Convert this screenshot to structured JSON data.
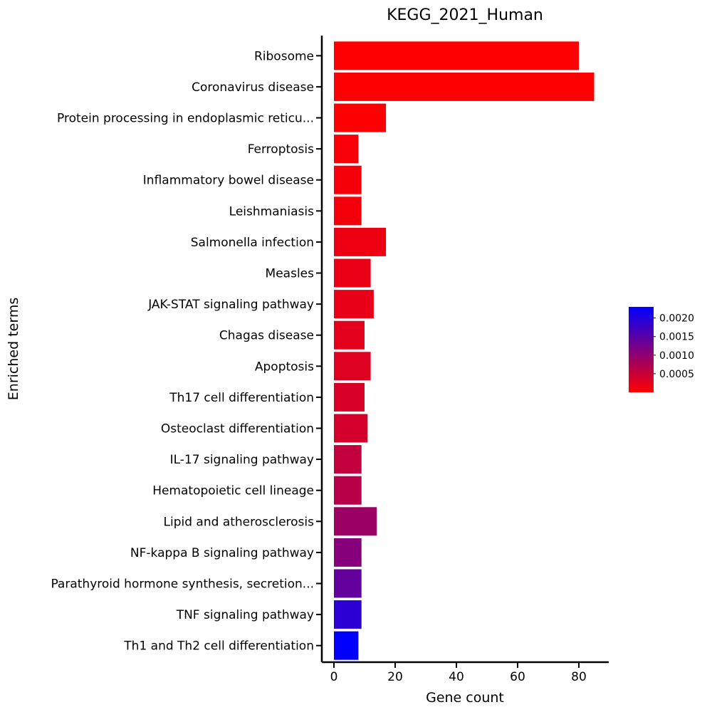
{
  "chart_data": {
    "type": "bar",
    "orientation": "horizontal",
    "title": "KEGG_2021_Human",
    "xlabel": "Gene count",
    "ylabel": "Enriched terms",
    "xlim": [
      -4,
      89
    ],
    "xticks": [
      0,
      20,
      40,
      60,
      80
    ],
    "grid": false,
    "categories": [
      "Ribosome",
      "Coronavirus disease",
      "Protein processing in endoplasmic reticu...",
      "Ferroptosis",
      "Inflammatory bowel disease",
      "Leishmaniasis",
      "Salmonella infection",
      "Measles",
      "JAK-STAT signaling pathway",
      "Chagas disease",
      "Apoptosis",
      "Th17 cell differentiation",
      "Osteoclast differentiation",
      "IL-17 signaling pathway",
      "Hematopoietic cell lineage",
      "Lipid and atherosclerosis",
      "NF-kappa B signaling pathway",
      "Parathyroid hormone synthesis, secretion...",
      "TNF signaling pathway",
      "Th1 and Th2 cell differentiation"
    ],
    "values": [
      80,
      85,
      17,
      8,
      9,
      9,
      17,
      12,
      13,
      10,
      12,
      10,
      11,
      9,
      9,
      14,
      9,
      9,
      9,
      8
    ],
    "color_values": [
      1e-05,
      1e-05,
      2e-05,
      6e-05,
      9e-05,
      0.0001,
      0.00016,
      0.0002,
      0.00022,
      0.00025,
      0.0003,
      0.00035,
      0.0004,
      0.00055,
      0.00065,
      0.0009,
      0.0011,
      0.0014,
      0.0019,
      0.0023
    ],
    "colorbar": {
      "range": [
        0,
        0.0023
      ],
      "ticks": [
        0.0005,
        0.001,
        0.0015,
        0.002
      ],
      "tick_labels": [
        "0.0005",
        "0.0010",
        "0.0015",
        "0.0020"
      ],
      "low_color": "#ff0000",
      "high_color": "#0000ff",
      "position": "right"
    }
  }
}
